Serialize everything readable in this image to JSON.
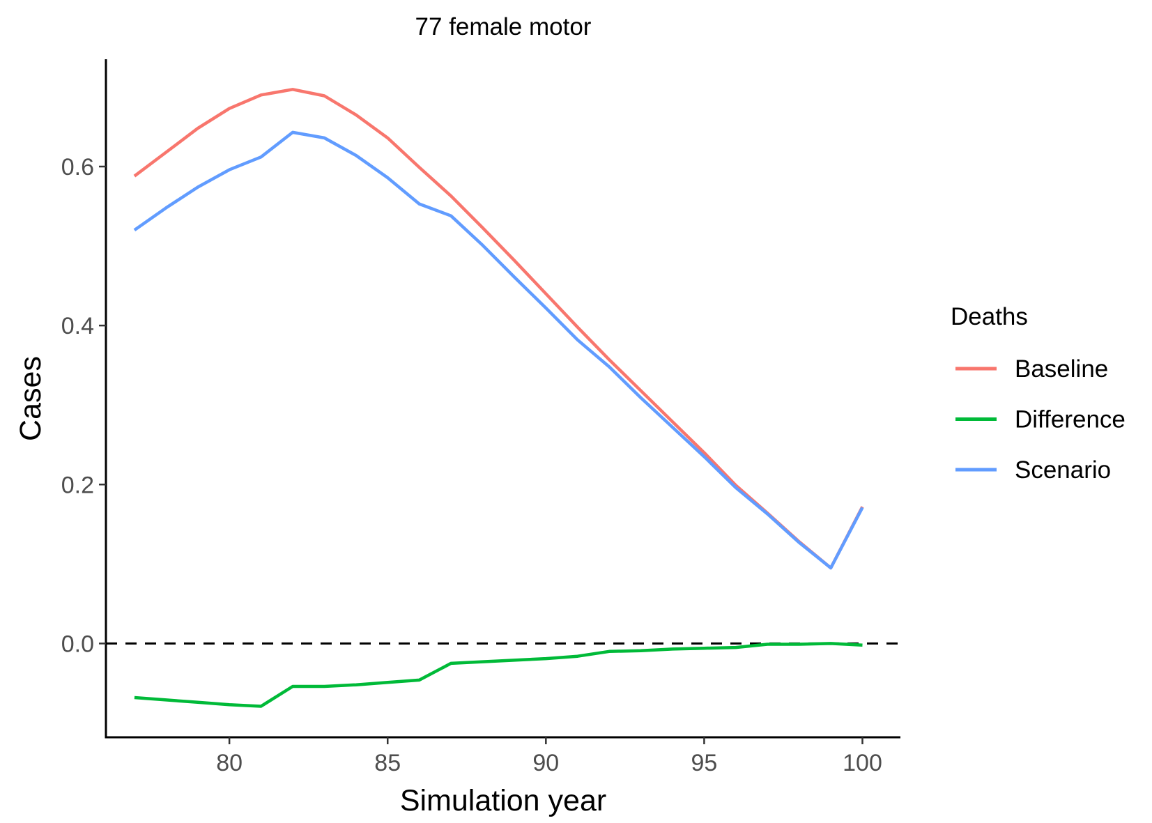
{
  "chart_data": {
    "type": "line",
    "title": "77 female motor",
    "xlabel": "Simulation year",
    "ylabel": "Cases",
    "xlim": [
      76.1,
      101.2
    ],
    "ylim": [
      -0.118,
      0.735
    ],
    "x_ticks": [
      80,
      85,
      90,
      95,
      100
    ],
    "y_ticks": [
      0.0,
      0.2,
      0.4,
      0.6
    ],
    "x_tick_labels": [
      "80",
      "85",
      "90",
      "95",
      "100"
    ],
    "y_tick_labels": [
      "0.0",
      "0.2",
      "0.4",
      "0.6"
    ],
    "reference_line": {
      "y": 0,
      "style": "dashed",
      "color": "#000000"
    },
    "grid": false,
    "legend": {
      "title": "Deaths",
      "position": "right"
    },
    "x": [
      77,
      78,
      79,
      80,
      81,
      82,
      83,
      84,
      85,
      86,
      87,
      88,
      89,
      90,
      91,
      92,
      93,
      94,
      95,
      96,
      97,
      98,
      99,
      100
    ],
    "series": [
      {
        "name": "Baseline",
        "color": "#F8766D",
        "values": [
          0.588,
          0.618,
          0.648,
          0.673,
          0.69,
          0.697,
          0.689,
          0.665,
          0.636,
          0.599,
          0.563,
          0.523,
          0.482,
          0.44,
          0.398,
          0.357,
          0.318,
          0.279,
          0.24,
          0.199,
          0.164,
          0.128,
          0.095,
          0.172
        ]
      },
      {
        "name": "Difference",
        "color": "#00BA38",
        "values": [
          -0.068,
          -0.071,
          -0.074,
          -0.077,
          -0.079,
          -0.054,
          -0.054,
          -0.052,
          -0.049,
          -0.046,
          -0.025,
          -0.023,
          -0.021,
          -0.019,
          -0.016,
          -0.01,
          -0.009,
          -0.007,
          -0.006,
          -0.005,
          -0.001,
          -0.001,
          0.0,
          -0.002
        ]
      },
      {
        "name": "Scenario",
        "color": "#619CFF",
        "values": [
          0.52,
          0.548,
          0.574,
          0.596,
          0.612,
          0.643,
          0.636,
          0.614,
          0.586,
          0.553,
          0.538,
          0.501,
          0.461,
          0.422,
          0.382,
          0.348,
          0.309,
          0.272,
          0.235,
          0.196,
          0.163,
          0.127,
          0.095,
          0.171
        ]
      }
    ]
  }
}
